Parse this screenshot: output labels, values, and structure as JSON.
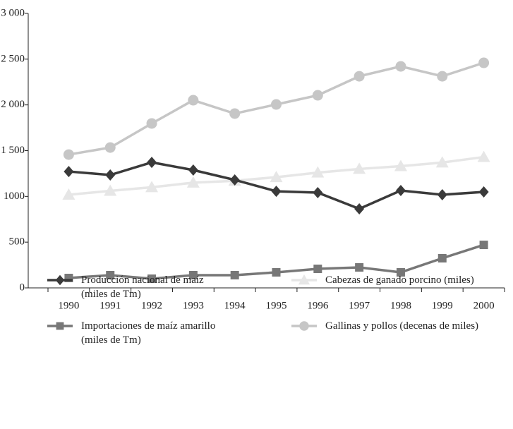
{
  "chart_data": {
    "type": "line",
    "categories": [
      "1990",
      "1991",
      "1992",
      "1993",
      "1994",
      "1995",
      "1996",
      "1997",
      "1998",
      "1999",
      "2000"
    ],
    "series": [
      {
        "name": "Producción nacional de maíz\n(miles de Tm)",
        "color": "#3a3a3a",
        "marker": "diamond",
        "values": [
          1272,
          1234,
          1372,
          1288,
          1180,
          1056,
          1041,
          864,
          1064,
          1018,
          1049
        ]
      },
      {
        "name": "Importaciones de maíz amarillo\n(miles de Tm)",
        "color": "#777777",
        "marker": "square",
        "values": [
          108,
          139,
          100,
          139,
          139,
          170,
          208,
          224,
          170,
          324,
          470
        ]
      },
      {
        "name": "Cabezas de ganado porcino (miles)",
        "color": "#e6e6e6",
        "marker": "triangle",
        "values": [
          1018,
          1060,
          1100,
          1150,
          1170,
          1210,
          1260,
          1300,
          1330,
          1370,
          1430
        ]
      },
      {
        "name": "Gallinas y pollos (decenas de miles)",
        "color": "#c6c6c6",
        "marker": "circle",
        "values": [
          1457,
          1534,
          1797,
          2051,
          1905,
          2005,
          2105,
          2313,
          2421,
          2313,
          2460
        ]
      }
    ],
    "ylim": [
      0,
      3000
    ],
    "yticks": [
      0,
      500,
      1000,
      {
        "value": 1500,
        "label": "1 500"
      },
      {
        "value": 2000,
        "label": "2 000"
      },
      {
        "value": 2500,
        "label": "2 500"
      },
      {
        "value": 3000,
        "label": "3 000"
      }
    ]
  }
}
